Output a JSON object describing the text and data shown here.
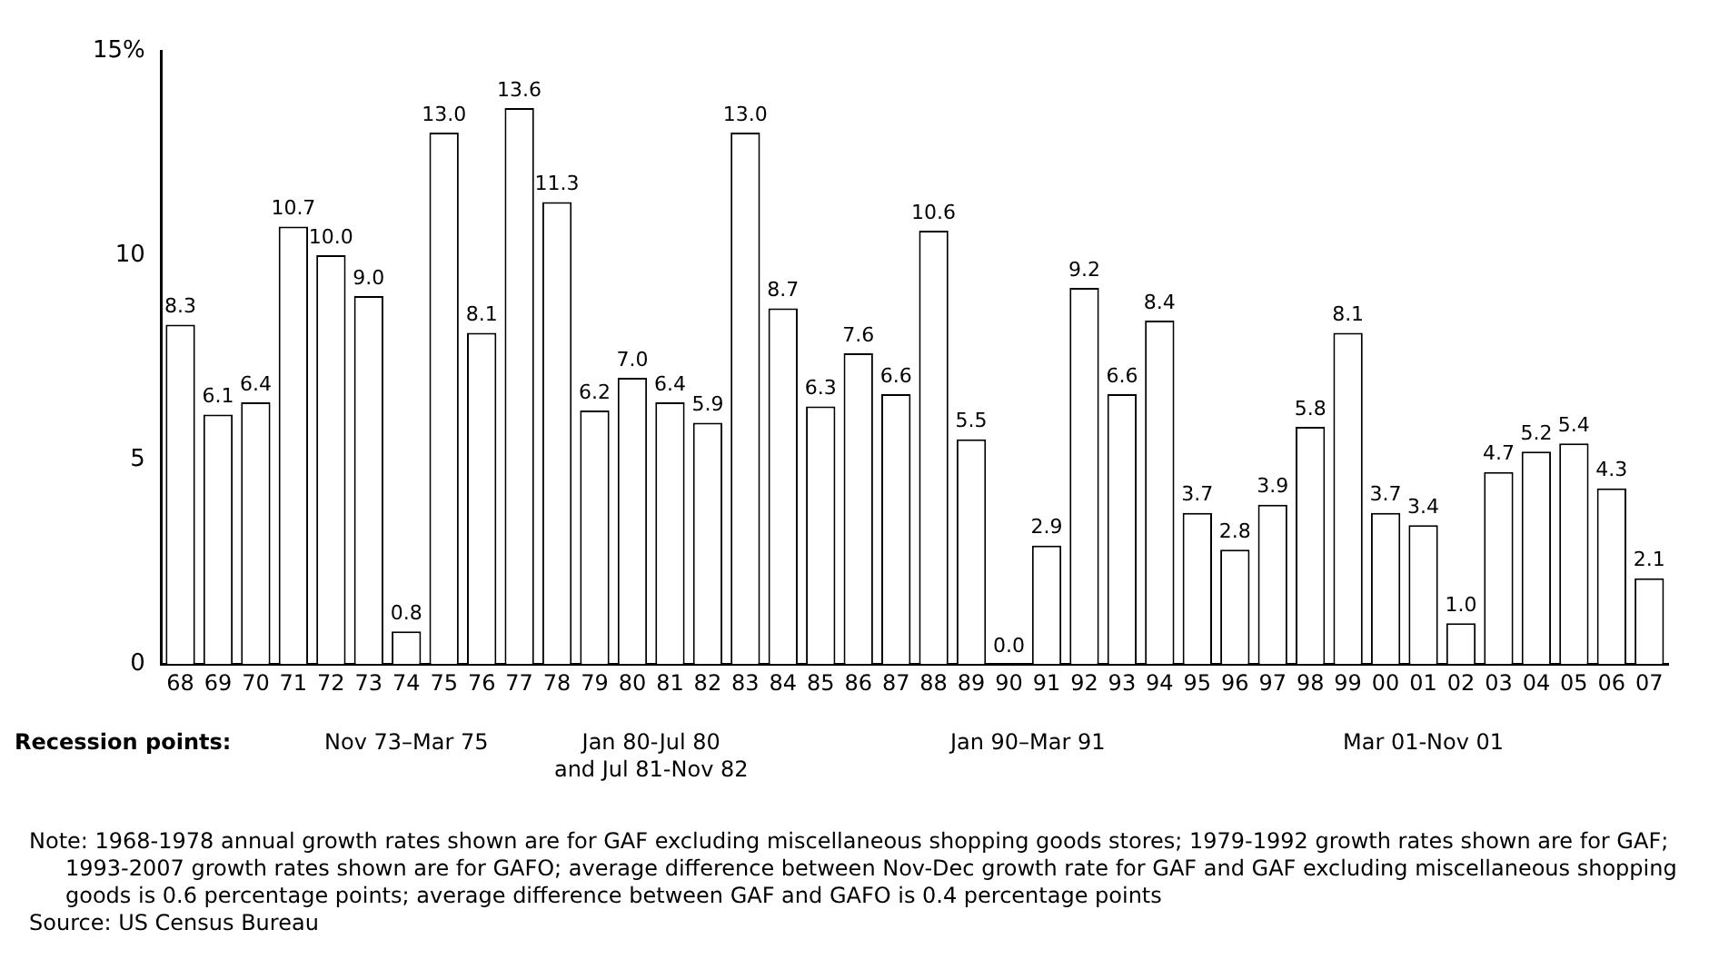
{
  "chart_data": {
    "type": "bar",
    "categories": [
      "68",
      "69",
      "70",
      "71",
      "72",
      "73",
      "74",
      "75",
      "76",
      "77",
      "78",
      "79",
      "80",
      "81",
      "82",
      "83",
      "84",
      "85",
      "86",
      "87",
      "88",
      "89",
      "90",
      "91",
      "92",
      "93",
      "94",
      "95",
      "96",
      "97",
      "98",
      "99",
      "00",
      "01",
      "02",
      "03",
      "04",
      "05",
      "06",
      "07"
    ],
    "values": [
      8.3,
      6.1,
      6.4,
      10.7,
      10.0,
      9.0,
      0.8,
      13.0,
      8.1,
      13.6,
      11.3,
      6.2,
      7.0,
      6.4,
      5.9,
      13.0,
      8.7,
      6.3,
      7.6,
      6.6,
      10.6,
      5.5,
      0.0,
      2.9,
      9.2,
      6.6,
      8.4,
      3.7,
      2.8,
      3.9,
      5.8,
      8.1,
      3.7,
      3.4,
      1.0,
      4.7,
      5.2,
      5.4,
      4.3,
      2.1
    ],
    "value_labels": [
      "8.3",
      "6.1",
      "6.4",
      "10.7",
      "10.0",
      "9.0",
      "0.8",
      "13.0",
      "8.1",
      "13.6",
      "11.3",
      "6.2",
      "7.0",
      "6.4",
      "5.9",
      "13.0",
      "8.7",
      "6.3",
      "7.6",
      "6.6",
      "10.6",
      "5.5",
      "0.0",
      "2.9",
      "9.2",
      "6.6",
      "8.4",
      "3.7",
      "2.8",
      "3.9",
      "5.8",
      "8.1",
      "3.7",
      "3.4",
      "1.0",
      "4.7",
      "5.2",
      "5.4",
      "4.3",
      "2.1"
    ],
    "color": "#ffffff",
    "ylim": [
      0,
      15
    ],
    "yticks": [
      0,
      5,
      10,
      {
        "value": 15,
        "label": "15%"
      }
    ],
    "grid": false,
    "legend": false,
    "annotations": [
      "Recession points:",
      "Nov 73–Mar 75",
      "Jan 80-Jul 80\nand Jul 81-Nov 82",
      "Jan 90–Mar 91",
      "Mar 01-Nov 01",
      "Note: 1968-1978 annual growth rates shown are for GAF excluding miscellaneous shopping goods stores; 1979-1992 growth rates shown are for GAF; 1993-2007 growth rates shown are for GAFO; average difference between Nov-Dec growth rate for GAF and GAF excluding miscellaneous shopping goods is 0.6 percentage points; average difference between GAF and GAFO is 0.4 percentage points",
      "Source: US Census Bureau"
    ]
  }
}
